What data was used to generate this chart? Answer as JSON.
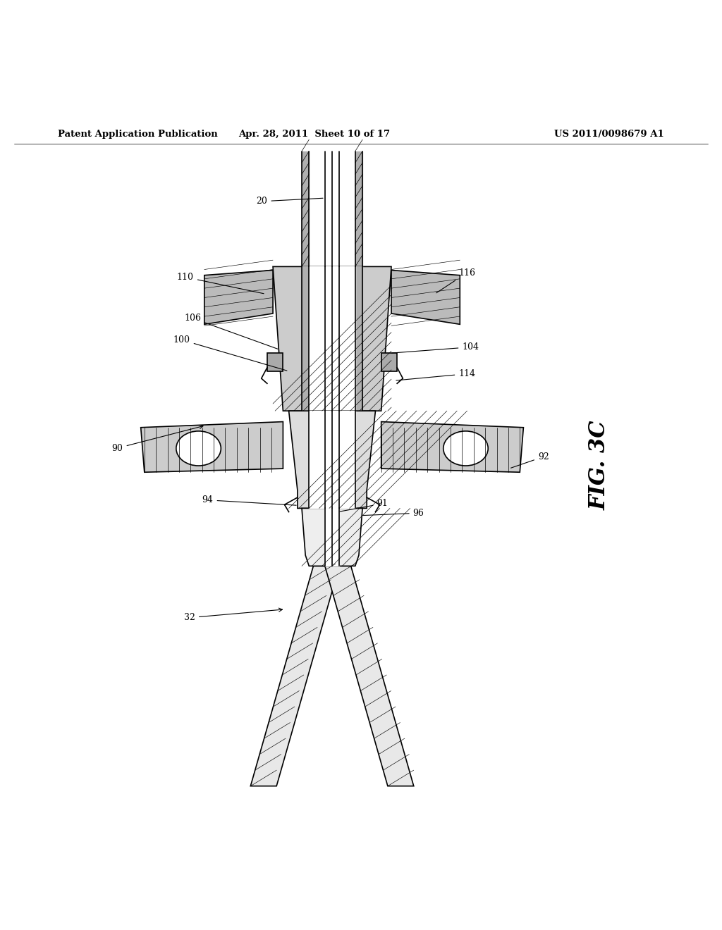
{
  "header_left": "Patent Application Publication",
  "header_mid": "Apr. 28, 2011  Sheet 10 of 17",
  "header_right": "US 2011/0098679 A1",
  "fig_label": "FIG. 3C",
  "bg_color": "#ffffff"
}
